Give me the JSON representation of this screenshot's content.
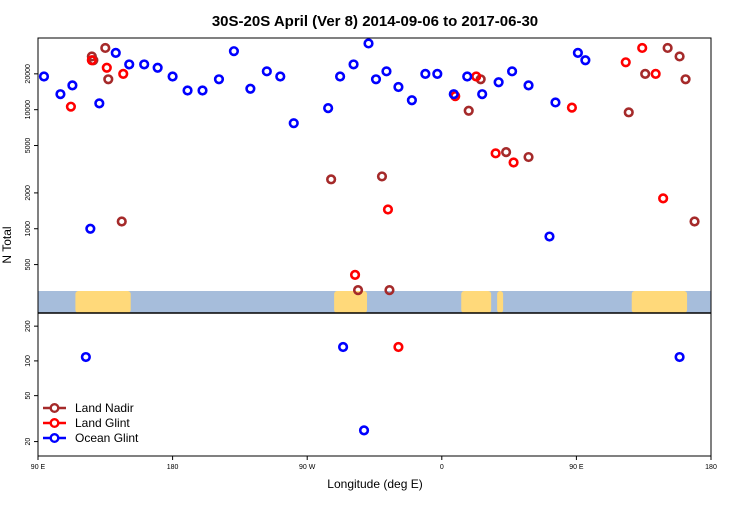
{
  "chart_data": {
    "type": "scatter",
    "title": "30S-20S April (Ver 8)   2014-09-06 to 2017-06-30",
    "xlabel": "Longitude (deg E)",
    "ylabel": "N Total",
    "yscale": "log",
    "xlim": [
      90,
      540
    ],
    "x_ticks": [
      {
        "value": 90,
        "label": "90 E"
      },
      {
        "value": 180,
        "label": "180"
      },
      {
        "value": 270,
        "label": "90 W"
      },
      {
        "value": 360,
        "label": "0"
      },
      {
        "value": 450,
        "label": "90 E"
      },
      {
        "value": 540,
        "label": "180"
      }
    ],
    "upper_panel": {
      "ylim": [
        300,
        40000
      ],
      "y_ticks": [
        500,
        1000,
        2000,
        5000,
        10000,
        20000
      ]
    },
    "lower_panel": {
      "ylim": [
        15,
        260
      ],
      "y_ticks": [
        20,
        50,
        100,
        200
      ]
    },
    "colors": {
      "land_nadir": "#a52a2a",
      "land_glint": "#ff0000",
      "ocean_glint": "#0000ff",
      "ocean_band": "#a6bddb",
      "land_band": "#ffd97a"
    },
    "legend": {
      "placement": "bottom-left",
      "entries": [
        {
          "key": "land_nadir",
          "label": "Land Nadir"
        },
        {
          "key": "land_glint",
          "label": "Land Glint"
        },
        {
          "key": "ocean_glint",
          "label": "Ocean Glint"
        }
      ]
    },
    "series": [
      {
        "key": "land_nadir",
        "name": "Land Nadir",
        "points": [
          [
            127,
            26000
          ],
          [
            126,
            28000
          ],
          [
            135,
            33000
          ],
          [
            137,
            18000
          ],
          [
            146,
            1150
          ],
          [
            286,
            2600
          ],
          [
            304,
            305
          ],
          [
            320,
            2750
          ],
          [
            325,
            305
          ],
          [
            378,
            9800
          ],
          [
            386,
            18000
          ],
          [
            403,
            4400
          ],
          [
            418,
            4000
          ],
          [
            485,
            9500
          ],
          [
            496,
            20000
          ],
          [
            511,
            33000
          ],
          [
            519,
            28000
          ],
          [
            523,
            18000
          ],
          [
            529,
            1150
          ]
        ]
      },
      {
        "key": "land_glint",
        "name": "Land Glint",
        "points": [
          [
            136,
            22500
          ],
          [
            126,
            26000
          ],
          [
            112,
            10600
          ],
          [
            147,
            20000
          ],
          [
            302,
            410
          ],
          [
            324,
            1450
          ],
          [
            369,
            13000
          ],
          [
            383,
            19000
          ],
          [
            396,
            4300
          ],
          [
            408,
            3600
          ],
          [
            447,
            10400
          ],
          [
            483,
            25000
          ],
          [
            494,
            33000
          ],
          [
            503,
            20000
          ],
          [
            508,
            1800
          ]
        ]
      },
      {
        "key": "ocean_glint",
        "name": "Ocean Glint",
        "points": [
          [
            94,
            19000
          ],
          [
            105,
            13500
          ],
          [
            113,
            16000
          ],
          [
            125,
            1000
          ],
          [
            131,
            11300
          ],
          [
            142,
            30000
          ],
          [
            151,
            24000
          ],
          [
            161,
            24000
          ],
          [
            170,
            22500
          ],
          [
            180,
            19000
          ],
          [
            190,
            14500
          ],
          [
            200,
            14500
          ],
          [
            211,
            18000
          ],
          [
            221,
            31000
          ],
          [
            232,
            15000
          ],
          [
            243,
            21000
          ],
          [
            252,
            19000
          ],
          [
            261,
            7700
          ],
          [
            284,
            10300
          ],
          [
            292,
            19000
          ],
          [
            301,
            24000
          ],
          [
            311,
            36000
          ],
          [
            316,
            18000
          ],
          [
            323,
            21000
          ],
          [
            331,
            15500
          ],
          [
            340,
            12000
          ],
          [
            349,
            20000
          ],
          [
            357,
            20000
          ],
          [
            368,
            13500
          ],
          [
            377,
            19000
          ],
          [
            387,
            13500
          ],
          [
            398,
            17000
          ],
          [
            407,
            21000
          ],
          [
            418,
            16000
          ],
          [
            432,
            860
          ],
          [
            436,
            11500
          ],
          [
            451,
            30000
          ],
          [
            456,
            26000
          ],
          [
            122,
            108
          ],
          [
            294,
            132
          ],
          [
            519,
            108
          ],
          [
            308,
            25
          ]
        ],
        "lower_points": [
          [
            122,
            108
          ],
          [
            294,
            132
          ],
          [
            308,
            25
          ],
          [
            519,
            108
          ]
        ],
        "land_glint_lower": [
          [
            331,
            132
          ]
        ]
      }
    ]
  }
}
